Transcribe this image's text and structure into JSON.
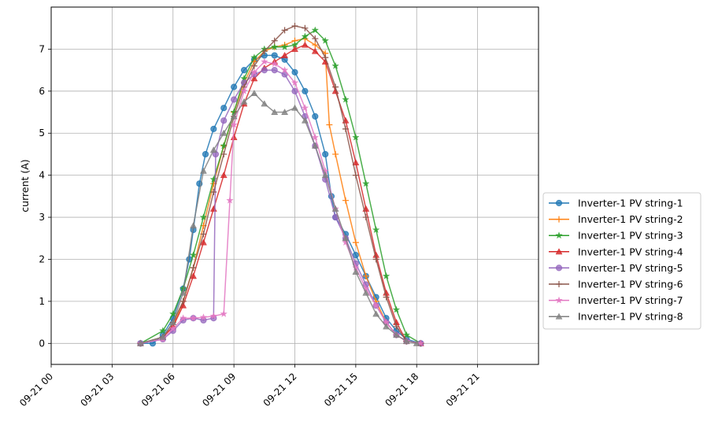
{
  "chart_data": {
    "type": "line",
    "title": "",
    "xlabel": "",
    "ylabel": "current (A)",
    "xlim_hours": [
      0,
      24
    ],
    "ylim": [
      -0.5,
      8.0
    ],
    "grid": true,
    "legend_position": "outside-right",
    "x_ticks": [
      {
        "hour": 0,
        "label": "09-21 00"
      },
      {
        "hour": 3,
        "label": "09-21 03"
      },
      {
        "hour": 6,
        "label": "09-21 06"
      },
      {
        "hour": 9,
        "label": "09-21 09"
      },
      {
        "hour": 12,
        "label": "09-21 12"
      },
      {
        "hour": 15,
        "label": "09-21 15"
      },
      {
        "hour": 18,
        "label": "09-21 18"
      },
      {
        "hour": 21,
        "label": "09-21 21"
      }
    ],
    "y_ticks": [
      0,
      1,
      2,
      3,
      4,
      5,
      6,
      7
    ],
    "series": [
      {
        "name": "Inverter-1 PV string-1",
        "color": "#1f77b4",
        "marker": "circle",
        "points": [
          [
            4.4,
            0
          ],
          [
            5.0,
            0.0
          ],
          [
            5.5,
            0.2
          ],
          [
            6.0,
            0.6
          ],
          [
            6.5,
            1.3
          ],
          [
            6.8,
            2.0
          ],
          [
            7.0,
            2.7
          ],
          [
            7.3,
            3.8
          ],
          [
            7.6,
            4.5
          ],
          [
            8.0,
            5.1
          ],
          [
            8.5,
            5.6
          ],
          [
            9.0,
            6.1
          ],
          [
            9.5,
            6.5
          ],
          [
            10.0,
            6.75
          ],
          [
            10.5,
            6.85
          ],
          [
            11.0,
            6.85
          ],
          [
            11.5,
            6.75
          ],
          [
            12.0,
            6.45
          ],
          [
            12.5,
            6.0
          ],
          [
            13.0,
            5.4
          ],
          [
            13.5,
            4.5
          ],
          [
            13.8,
            3.5
          ],
          [
            14.0,
            3.0
          ],
          [
            14.5,
            2.6
          ],
          [
            15.0,
            2.1
          ],
          [
            15.5,
            1.6
          ],
          [
            16.0,
            1.1
          ],
          [
            16.5,
            0.6
          ],
          [
            17.0,
            0.3
          ],
          [
            17.5,
            0.1
          ],
          [
            18.2,
            0
          ]
        ]
      },
      {
        "name": "Inverter-1 PV string-2",
        "color": "#ff7f0e",
        "marker": "plus",
        "points": [
          [
            4.4,
            0
          ],
          [
            5.5,
            0.15
          ],
          [
            6.0,
            0.4
          ],
          [
            6.5,
            1.0
          ],
          [
            7.0,
            1.8
          ],
          [
            7.5,
            2.8
          ],
          [
            8.0,
            3.8
          ],
          [
            8.5,
            4.7
          ],
          [
            9.0,
            5.5
          ],
          [
            9.5,
            6.2
          ],
          [
            10.0,
            6.7
          ],
          [
            10.5,
            6.95
          ],
          [
            11.0,
            7.05
          ],
          [
            11.5,
            7.1
          ],
          [
            12.0,
            7.2
          ],
          [
            12.5,
            7.25
          ],
          [
            13.0,
            7.1
          ],
          [
            13.5,
            6.9
          ],
          [
            13.7,
            5.2
          ],
          [
            14.0,
            4.5
          ],
          [
            14.5,
            3.4
          ],
          [
            15.0,
            2.4
          ],
          [
            15.5,
            1.6
          ],
          [
            16.0,
            1.0
          ],
          [
            16.5,
            0.5
          ],
          [
            17.0,
            0.2
          ],
          [
            17.5,
            0.05
          ],
          [
            18.2,
            0
          ]
        ]
      },
      {
        "name": "Inverter-1 PV string-3",
        "color": "#2ca02c",
        "marker": "star",
        "points": [
          [
            4.4,
            0
          ],
          [
            5.5,
            0.3
          ],
          [
            6.0,
            0.7
          ],
          [
            6.5,
            1.3
          ],
          [
            7.0,
            2.1
          ],
          [
            7.5,
            3.0
          ],
          [
            8.0,
            3.9
          ],
          [
            8.5,
            4.7
          ],
          [
            9.0,
            5.5
          ],
          [
            9.5,
            6.3
          ],
          [
            10.0,
            6.8
          ],
          [
            10.5,
            7.0
          ],
          [
            11.0,
            7.05
          ],
          [
            11.5,
            7.05
          ],
          [
            12.0,
            7.1
          ],
          [
            12.5,
            7.3
          ],
          [
            13.0,
            7.45
          ],
          [
            13.5,
            7.2
          ],
          [
            14.0,
            6.6
          ],
          [
            14.5,
            5.8
          ],
          [
            15.0,
            4.9
          ],
          [
            15.5,
            3.8
          ],
          [
            16.0,
            2.7
          ],
          [
            16.5,
            1.6
          ],
          [
            17.0,
            0.8
          ],
          [
            17.5,
            0.2
          ],
          [
            18.2,
            0
          ]
        ]
      },
      {
        "name": "Inverter-1 PV string-4",
        "color": "#d62728",
        "marker": "triangle",
        "points": [
          [
            4.4,
            0
          ],
          [
            5.5,
            0.15
          ],
          [
            6.0,
            0.4
          ],
          [
            6.5,
            0.9
          ],
          [
            7.0,
            1.6
          ],
          [
            7.5,
            2.4
          ],
          [
            8.0,
            3.2
          ],
          [
            8.5,
            4.0
          ],
          [
            9.0,
            4.9
          ],
          [
            9.5,
            5.7
          ],
          [
            10.0,
            6.3
          ],
          [
            10.5,
            6.55
          ],
          [
            11.0,
            6.7
          ],
          [
            11.5,
            6.85
          ],
          [
            12.0,
            7.0
          ],
          [
            12.5,
            7.1
          ],
          [
            13.0,
            6.95
          ],
          [
            13.5,
            6.7
          ],
          [
            14.0,
            6.0
          ],
          [
            14.5,
            5.3
          ],
          [
            15.0,
            4.3
          ],
          [
            15.5,
            3.2
          ],
          [
            16.0,
            2.1
          ],
          [
            16.5,
            1.2
          ],
          [
            17.0,
            0.5
          ],
          [
            17.5,
            0.05
          ],
          [
            18.2,
            0
          ]
        ]
      },
      {
        "name": "Inverter-1 PV string-5",
        "color": "#9467bd",
        "marker": "circle",
        "points": [
          [
            4.4,
            0
          ],
          [
            5.5,
            0.1
          ],
          [
            6.0,
            0.3
          ],
          [
            6.5,
            0.55
          ],
          [
            7.0,
            0.6
          ],
          [
            7.5,
            0.55
          ],
          [
            8.0,
            0.6
          ],
          [
            8.1,
            4.5
          ],
          [
            8.5,
            5.3
          ],
          [
            9.0,
            5.8
          ],
          [
            9.5,
            6.2
          ],
          [
            10.0,
            6.4
          ],
          [
            10.5,
            6.5
          ],
          [
            11.0,
            6.5
          ],
          [
            11.5,
            6.4
          ],
          [
            12.0,
            6.0
          ],
          [
            12.5,
            5.4
          ],
          [
            13.0,
            4.7
          ],
          [
            13.5,
            3.9
          ],
          [
            14.0,
            3.0
          ],
          [
            14.5,
            2.5
          ],
          [
            15.0,
            1.9
          ],
          [
            15.5,
            1.4
          ],
          [
            16.0,
            0.9
          ],
          [
            16.5,
            0.5
          ],
          [
            17.0,
            0.2
          ],
          [
            17.5,
            0.05
          ],
          [
            18.2,
            0
          ]
        ]
      },
      {
        "name": "Inverter-1 PV string-6",
        "color": "#8c564b",
        "marker": "plus",
        "points": [
          [
            4.4,
            0
          ],
          [
            5.5,
            0.15
          ],
          [
            6.0,
            0.5
          ],
          [
            6.5,
            1.0
          ],
          [
            7.0,
            1.8
          ],
          [
            7.5,
            2.6
          ],
          [
            8.0,
            3.6
          ],
          [
            8.5,
            4.5
          ],
          [
            9.0,
            5.4
          ],
          [
            9.5,
            6.1
          ],
          [
            10.0,
            6.6
          ],
          [
            10.5,
            6.95
          ],
          [
            11.0,
            7.2
          ],
          [
            11.5,
            7.45
          ],
          [
            12.0,
            7.55
          ],
          [
            12.5,
            7.5
          ],
          [
            13.0,
            7.25
          ],
          [
            13.5,
            6.8
          ],
          [
            14.0,
            6.1
          ],
          [
            14.5,
            5.1
          ],
          [
            15.0,
            4.0
          ],
          [
            15.5,
            3.0
          ],
          [
            16.0,
            2.0
          ],
          [
            16.5,
            1.1
          ],
          [
            17.0,
            0.4
          ],
          [
            17.5,
            0.05
          ],
          [
            18.2,
            0
          ]
        ]
      },
      {
        "name": "Inverter-1 PV string-7",
        "color": "#e377c2",
        "marker": "star",
        "points": [
          [
            4.4,
            0
          ],
          [
            5.5,
            0.1
          ],
          [
            6.0,
            0.35
          ],
          [
            6.5,
            0.6
          ],
          [
            7.0,
            0.6
          ],
          [
            7.5,
            0.62
          ],
          [
            8.0,
            0.65
          ],
          [
            8.5,
            0.7
          ],
          [
            8.8,
            3.4
          ],
          [
            9.0,
            5.2
          ],
          [
            9.5,
            6.0
          ],
          [
            10.0,
            6.45
          ],
          [
            10.5,
            6.7
          ],
          [
            11.0,
            6.65
          ],
          [
            11.5,
            6.5
          ],
          [
            12.0,
            6.2
          ],
          [
            12.5,
            5.6
          ],
          [
            13.0,
            4.9
          ],
          [
            13.5,
            4.1
          ],
          [
            14.0,
            3.2
          ],
          [
            14.5,
            2.4
          ],
          [
            15.0,
            1.8
          ],
          [
            15.5,
            1.3
          ],
          [
            16.0,
            0.9
          ],
          [
            16.5,
            0.5
          ],
          [
            17.0,
            0.2
          ],
          [
            17.5,
            0.05
          ],
          [
            18.2,
            0
          ]
        ]
      },
      {
        "name": "Inverter-1 PV string-8",
        "color": "#7f7f7f",
        "marker": "triangle",
        "points": [
          [
            4.4,
            0
          ],
          [
            5.5,
            0.15
          ],
          [
            6.0,
            0.5
          ],
          [
            6.5,
            1.2
          ],
          [
            7.0,
            2.8
          ],
          [
            7.5,
            4.1
          ],
          [
            8.0,
            4.6
          ],
          [
            8.5,
            5.0
          ],
          [
            9.0,
            5.4
          ],
          [
            9.5,
            5.75
          ],
          [
            10.0,
            5.95
          ],
          [
            10.5,
            5.7
          ],
          [
            11.0,
            5.5
          ],
          [
            11.5,
            5.5
          ],
          [
            12.0,
            5.6
          ],
          [
            12.5,
            5.3
          ],
          [
            13.0,
            4.7
          ],
          [
            13.5,
            4.0
          ],
          [
            14.0,
            3.2
          ],
          [
            14.5,
            2.5
          ],
          [
            15.0,
            1.7
          ],
          [
            15.5,
            1.2
          ],
          [
            16.0,
            0.7
          ],
          [
            16.5,
            0.4
          ],
          [
            17.0,
            0.2
          ],
          [
            17.5,
            0.05
          ],
          [
            18.0,
            0
          ]
        ]
      }
    ]
  }
}
